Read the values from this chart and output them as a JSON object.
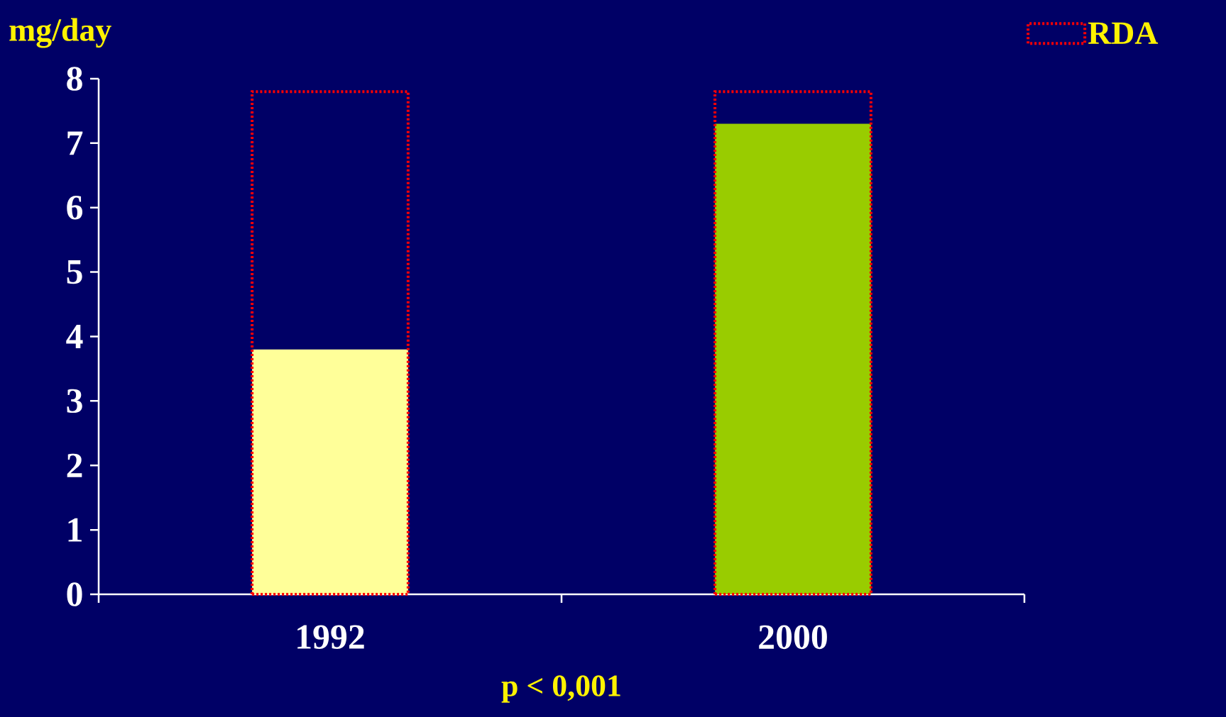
{
  "chart_data": {
    "type": "bar",
    "ylabel": "mg/day",
    "categories": [
      "1992",
      "2000"
    ],
    "series": [
      {
        "colors": [
          "#ffff99",
          "#99cc00"
        ],
        "values": [
          3.8,
          7.3
        ]
      },
      {
        "name": "RDA",
        "color": "#ff0000",
        "line_style": "dotted",
        "values": [
          7.8,
          7.8
        ]
      }
    ],
    "ylim": [
      0,
      8
    ],
    "yticks": [
      0,
      1,
      2,
      3,
      4,
      5,
      6,
      7,
      8
    ],
    "legend": "top right",
    "grid": false,
    "annotations": [
      "p < 0,001"
    ]
  }
}
